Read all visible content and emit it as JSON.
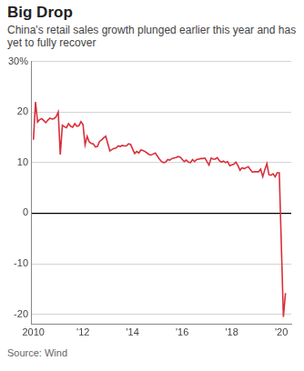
{
  "chart_data": {
    "type": "line",
    "title": "Big Drop",
    "subtitle": "China's retail sales growth plunged earlier this year and has yet to fully recover",
    "source": "Source: Wind",
    "color": "#d8303a",
    "marker": "none",
    "grid": true,
    "x": [
      2010.0,
      2010.083,
      2010.167,
      2010.25,
      2010.333,
      2010.417,
      2010.5,
      2010.583,
      2010.667,
      2010.75,
      2010.833,
      2010.917,
      2011.0,
      2011.083,
      2011.167,
      2011.25,
      2011.333,
      2011.417,
      2011.5,
      2011.583,
      2011.667,
      2011.75,
      2011.833,
      2011.917,
      2012.0,
      2012.083,
      2012.167,
      2012.25,
      2012.333,
      2012.417,
      2012.5,
      2012.583,
      2012.667,
      2012.75,
      2012.833,
      2012.917,
      2013.083,
      2013.167,
      2013.25,
      2013.333,
      2013.417,
      2013.5,
      2013.583,
      2013.667,
      2013.75,
      2013.833,
      2013.917,
      2014.083,
      2014.167,
      2014.25,
      2014.333,
      2014.417,
      2014.5,
      2014.583,
      2014.667,
      2014.75,
      2014.833,
      2014.917,
      2015.083,
      2015.167,
      2015.25,
      2015.333,
      2015.417,
      2015.5,
      2015.583,
      2015.667,
      2015.75,
      2015.833,
      2015.917,
      2016.083,
      2016.167,
      2016.25,
      2016.333,
      2016.417,
      2016.5,
      2016.583,
      2016.667,
      2016.75,
      2016.833,
      2016.917,
      2017.083,
      2017.167,
      2017.25,
      2017.333,
      2017.417,
      2017.5,
      2017.583,
      2017.667,
      2017.75,
      2017.833,
      2017.917,
      2018.083,
      2018.167,
      2018.25,
      2018.333,
      2018.417,
      2018.5,
      2018.583,
      2018.667,
      2018.75,
      2018.833,
      2018.917,
      2019.083,
      2019.167,
      2019.25,
      2019.333,
      2019.417,
      2019.5,
      2019.583,
      2019.667,
      2019.75,
      2019.833,
      2019.917,
      2020.083,
      2020.167
    ],
    "values": [
      14.5,
      22,
      18,
      18.5,
      18.7,
      18.3,
      17.9,
      18.4,
      18.8,
      18.6,
      18.7,
      19.1,
      20,
      11.6,
      17.4,
      17.1,
      16.9,
      17.7,
      17.2,
      17,
      17.7,
      17.2,
      17.3,
      18.1,
      17.5,
      13.5,
      15.2,
      14.1,
      13.8,
      13.7,
      13.1,
      13.2,
      14.2,
      14.5,
      14.9,
      15.2,
      12.3,
      12.6,
      12.8,
      12.9,
      13.3,
      13.2,
      13.4,
      13.3,
      13.3,
      13.7,
      13.6,
      11.8,
      12.2,
      11.9,
      12.5,
      12.4,
      12.2,
      11.9,
      11.6,
      11.5,
      11.7,
      11.9,
      10.7,
      10.2,
      10.0,
      10.1,
      10.6,
      10.5,
      10.8,
      10.9,
      11.0,
      11.2,
      11.1,
      10.2,
      10.5,
      10.1,
      10.0,
      10.6,
      10.2,
      10.6,
      10.7,
      10.8,
      10.8,
      10.9,
      9.5,
      10.9,
      10.7,
      10.7,
      11.0,
      10.4,
      10.1,
      10.3,
      10.0,
      10.2,
      9.4,
      9.7,
      10.1,
      9.4,
      8.5,
      9.0,
      8.8,
      9.0,
      9.2,
      8.6,
      8.1,
      8.2,
      8.2,
      8.7,
      7.2,
      8.6,
      9.8,
      7.6,
      7.5,
      7.8,
      7.2,
      8.0,
      8.0,
      -20.5,
      -15.8
    ],
    "xlim": [
      2009.9,
      2020.4
    ],
    "xticks": [
      {
        "value": 2010,
        "label": "2010"
      },
      {
        "value": 2012,
        "label": "'12"
      },
      {
        "value": 2014,
        "label": "'14"
      },
      {
        "value": 2016,
        "label": "'16"
      },
      {
        "value": 2018,
        "label": "'18"
      },
      {
        "value": 2020,
        "label": "'20"
      }
    ],
    "ylim": [
      -22,
      30
    ],
    "yticks": [
      -20,
      -10,
      0,
      10,
      20,
      {
        "value": 30,
        "label": "30%"
      }
    ]
  }
}
